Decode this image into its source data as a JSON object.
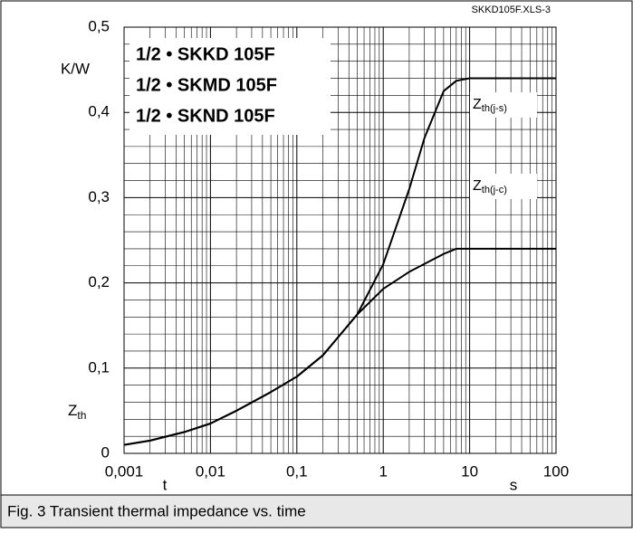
{
  "chart_data": {
    "type": "line",
    "annotation": "SKKD105F.XLS-3",
    "title_lines": [
      "1/2 • SKKD 105F",
      "1/2 • SKMD 105F",
      "1/2 • SKND 105F"
    ],
    "caption": "Fig. 3 Transient thermal impedance vs. time",
    "x_label": "t",
    "x_unit": "s",
    "y_unit": "K/W",
    "y_label": [
      "Z",
      "th"
    ],
    "x_log": true,
    "grid": true,
    "xlim": [
      0.001,
      100
    ],
    "ylim": [
      0,
      0.5
    ],
    "xticks": [
      {
        "value": 0.001,
        "label": "0,001"
      },
      {
        "value": 0.01,
        "label": "0,01"
      },
      {
        "value": 0.1,
        "label": "0,1"
      },
      1,
      10,
      100
    ],
    "yticks": [
      0,
      {
        "value": 0.1,
        "label": "0,1"
      },
      {
        "value": 0.2,
        "label": "0,2"
      },
      {
        "value": 0.3,
        "label": "0,3"
      },
      {
        "value": 0.4,
        "label": "0,4"
      },
      {
        "value": 0.5,
        "label": "0,5"
      }
    ],
    "series": [
      {
        "label": [
          "Z",
          "th(j-s)"
        ],
        "color": "#000000",
        "x": [
          0.001,
          0.002,
          0.005,
          0.01,
          0.02,
          0.05,
          0.1,
          0.2,
          0.5,
          1,
          2,
          3,
          5,
          7,
          10,
          20,
          100
        ],
        "values": [
          0.01,
          0.015,
          0.025,
          0.035,
          0.05,
          0.072,
          0.09,
          0.115,
          0.163,
          0.222,
          0.31,
          0.37,
          0.425,
          0.437,
          0.44,
          0.44,
          0.44
        ]
      },
      {
        "label": [
          "Z",
          "th(j-c)"
        ],
        "color": "#000000",
        "x": [
          0.001,
          0.002,
          0.005,
          0.01,
          0.02,
          0.05,
          0.1,
          0.2,
          0.5,
          1,
          2,
          5,
          7,
          10,
          20,
          100
        ],
        "values": [
          0.01,
          0.015,
          0.025,
          0.035,
          0.05,
          0.072,
          0.09,
          0.115,
          0.163,
          0.193,
          0.213,
          0.234,
          0.24,
          0.24,
          0.24,
          0.24
        ]
      }
    ]
  }
}
